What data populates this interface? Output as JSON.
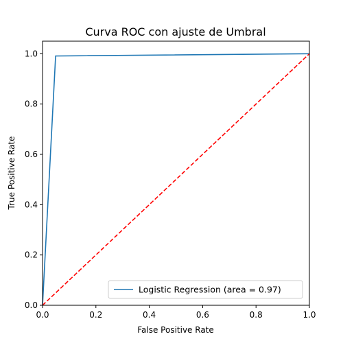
{
  "chart_data": {
    "type": "line",
    "title": "Curva ROC con ajuste de Umbral",
    "xlabel": "False Positive Rate",
    "ylabel": "True Positive Rate",
    "xlim": [
      0.0,
      1.0
    ],
    "ylim": [
      0.0,
      1.05
    ],
    "x_ticks": [
      "0.0",
      "0.2",
      "0.4",
      "0.6",
      "0.8",
      "1.0"
    ],
    "y_ticks": [
      "0.0",
      "0.2",
      "0.4",
      "0.6",
      "0.8",
      "1.0"
    ],
    "grid": false,
    "legend_position": "lower-right",
    "series": [
      {
        "name": "Logistic Regression (area = 0.97)",
        "color": "#1f77b4",
        "style": "solid",
        "x": [
          0.0,
          0.049,
          1.0
        ],
        "y": [
          0.0,
          0.991,
          1.0
        ]
      },
      {
        "color": "#ff0000",
        "style": "dashed",
        "x": [
          0.0,
          1.0
        ],
        "y": [
          0.0,
          1.0
        ]
      }
    ]
  }
}
